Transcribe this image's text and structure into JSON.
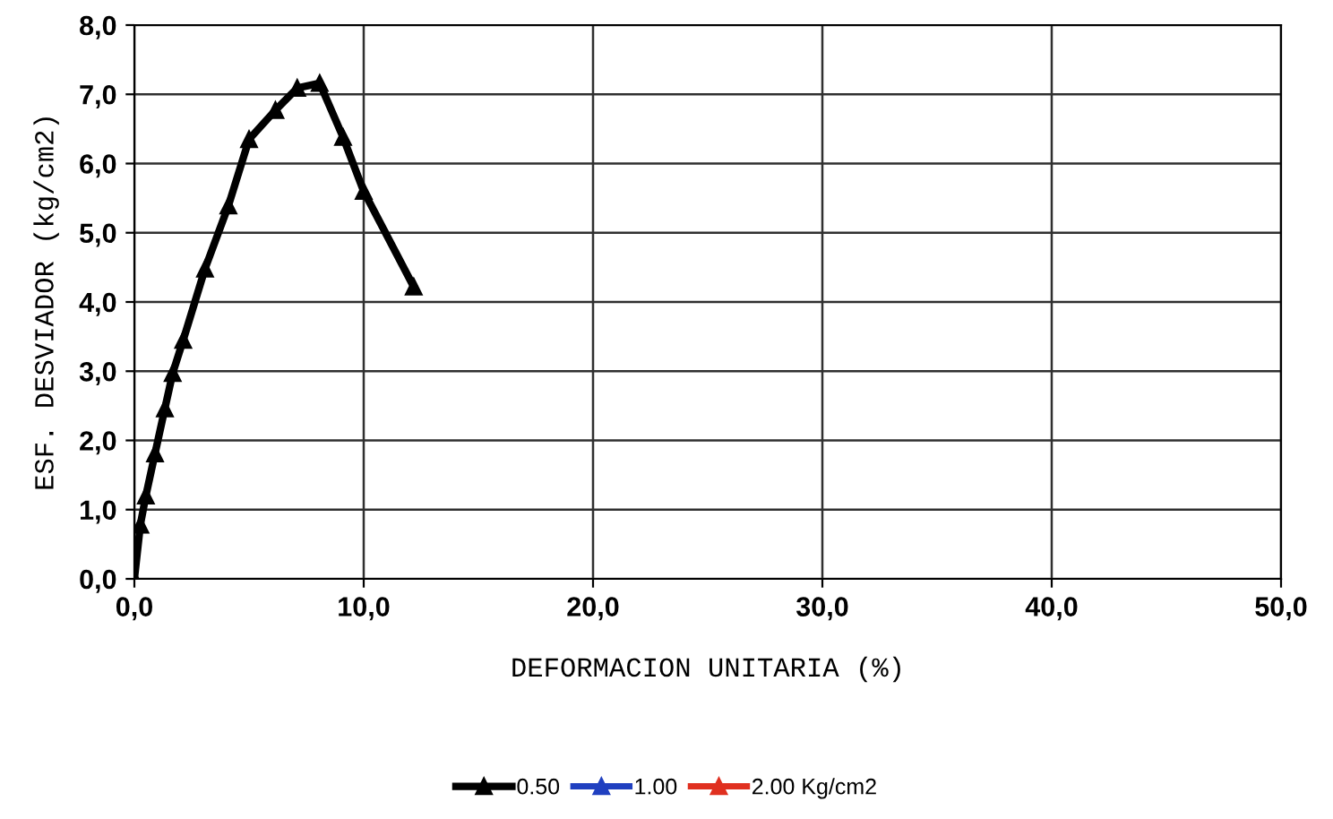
{
  "chart_data": {
    "type": "line",
    "xlabel": "DEFORMACION UNITARIA (%)",
    "ylabel": "ESF. DESVIADOR (kg/cm2)",
    "xlim": [
      0,
      50
    ],
    "xticks": [
      {
        "value": 0,
        "label": "0,0"
      },
      {
        "value": 10,
        "label": "10,0"
      },
      {
        "value": 20,
        "label": "20,0"
      },
      {
        "value": 30,
        "label": "30,0"
      },
      {
        "value": 40,
        "label": "40,0"
      },
      {
        "value": 50,
        "label": "50,0"
      }
    ],
    "ylim": [
      0,
      8
    ],
    "yticks": [
      {
        "value": 0,
        "label": "0,0"
      },
      {
        "value": 1,
        "label": "1,0"
      },
      {
        "value": 2,
        "label": "2,0"
      },
      {
        "value": 3,
        "label": "3,0"
      },
      {
        "value": 4,
        "label": "4,0"
      },
      {
        "value": 5,
        "label": "5,0"
      },
      {
        "value": 6,
        "label": "6,0"
      },
      {
        "value": 7,
        "label": "7,0"
      },
      {
        "value": 8,
        "label": "8,0"
      }
    ],
    "grid": true,
    "legend": "bottom",
    "marker": "triangle",
    "line_style": "solid",
    "series": [
      {
        "name": "0.50",
        "color": "#000000",
        "x": [
          0,
          0.26,
          0.5,
          0.9,
          1.33,
          1.67,
          2.13,
          3.08,
          4.1,
          5.0,
          6.15,
          7.1,
          8.08,
          9.1,
          10.0,
          12.18
        ],
        "values": [
          0,
          0.78,
          1.2,
          1.81,
          2.46,
          2.97,
          3.45,
          4.48,
          5.39,
          6.35,
          6.77,
          7.09,
          7.16,
          6.38,
          5.6,
          4.22
        ]
      },
      {
        "name": "1.00",
        "color": "#2040c0"
      },
      {
        "name": "2.00 Kg/cm2",
        "color": "#e03020"
      }
    ]
  }
}
